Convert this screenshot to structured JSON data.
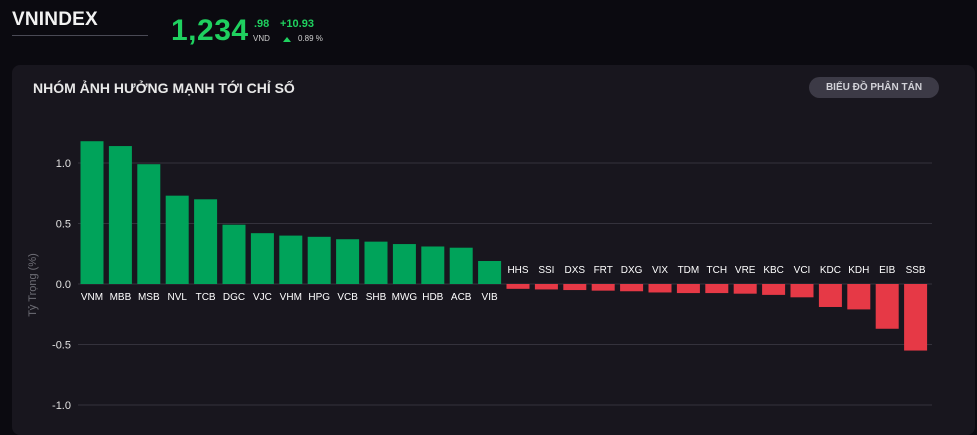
{
  "header": {
    "index_name": "VNINDEX",
    "price_main": "1,234",
    "price_decimal": ".98",
    "price_unit": "VND",
    "change_value": "+10.93",
    "change_percent": "0.89 %",
    "change_direction": "up",
    "accent_color": "#1fd15f"
  },
  "panel": {
    "title": "NHÓM ẢNH HƯỞNG MẠNH TỚI CHỈ SỐ",
    "scatter_button_label": "BIỂU ĐỒ PHÂN TÁN"
  },
  "chart_data": {
    "type": "bar",
    "title": "NHÓM ẢNH HƯỞNG MẠNH TỚI CHỈ SỐ",
    "ylabel": "Tỷ Trọng (%)",
    "xlabel": "",
    "ylim": [
      -1.0,
      1.0
    ],
    "yticks": [
      1.0,
      0.5,
      0.0,
      -0.5,
      -1.0
    ],
    "ytick_labels": [
      "1.0",
      "0.5",
      "0.0",
      "-0.5",
      "-1.0"
    ],
    "grid": true,
    "positive_color": "#00a35a",
    "negative_color": "#e63946",
    "categories": [
      "VNM",
      "MBB",
      "MSB",
      "NVL",
      "TCB",
      "DGC",
      "VJC",
      "VHM",
      "HPG",
      "VCB",
      "SHB",
      "MWG",
      "HDB",
      "ACB",
      "VIB",
      "HHS",
      "SSI",
      "DXS",
      "FRT",
      "DXG",
      "VIX",
      "TDM",
      "TCH",
      "VRE",
      "KBC",
      "VCI",
      "KDC",
      "KDH",
      "EIB",
      "SSB"
    ],
    "values": [
      1.18,
      1.14,
      0.99,
      0.73,
      0.7,
      0.49,
      0.42,
      0.4,
      0.39,
      0.37,
      0.35,
      0.33,
      0.31,
      0.3,
      0.19,
      -0.04,
      -0.045,
      -0.05,
      -0.055,
      -0.06,
      -0.07,
      -0.075,
      -0.075,
      -0.08,
      -0.09,
      -0.11,
      -0.19,
      -0.21,
      -0.37,
      -0.55
    ]
  }
}
